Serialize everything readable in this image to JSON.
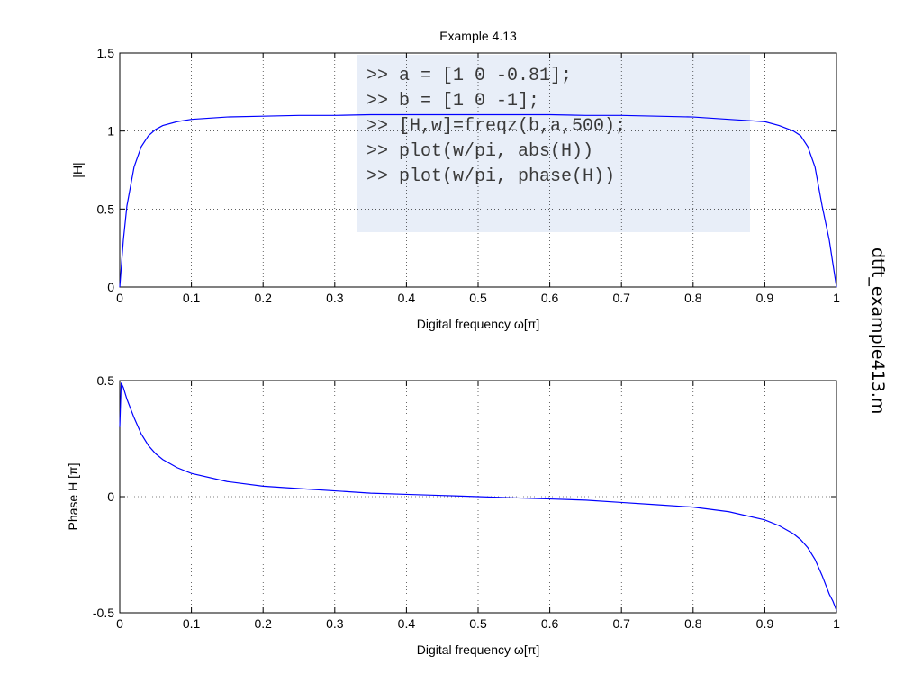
{
  "side_label": "dtft_example413.m",
  "code_box": {
    "lines": [
      ">> a = [1 0 -0.81];",
      ">> b = [1 0 -1];",
      ">> [H,w]=freqz(b,a,500);",
      ">> plot(w/pi, abs(H))",
      ">> plot(w/pi, phase(H))"
    ]
  },
  "colors": {
    "line": "#0000ff",
    "grid": "#000000",
    "code_box_bg": "#e8eef8"
  },
  "chart_data": [
    {
      "type": "line",
      "title": "Example 4.13",
      "xlabel": "Digital frequency ω[π]",
      "ylabel": "|H|",
      "xlim": [
        0,
        1
      ],
      "ylim": [
        0,
        1.5
      ],
      "xticks": [
        0,
        0.1,
        0.2,
        0.3,
        0.4,
        0.5,
        0.6,
        0.7,
        0.8,
        0.9,
        1
      ],
      "xtick_labels": [
        "0",
        "0.1",
        "0.2",
        "0.3",
        "0.4",
        "0.5",
        "0.6",
        "0.7",
        "0.8",
        "0.9",
        "1"
      ],
      "yticks": [
        0,
        0.5,
        1,
        1.5
      ],
      "ytick_labels": [
        "0",
        "0.5",
        "1",
        "1.5"
      ],
      "grid": true,
      "series": [
        {
          "x": [
            0,
            0.005,
            0.01,
            0.02,
            0.03,
            0.04,
            0.05,
            0.06,
            0.08,
            0.1,
            0.15,
            0.2,
            0.25,
            0.3,
            0.35,
            0.4,
            0.45,
            0.5,
            0.55,
            0.6,
            0.65,
            0.7,
            0.75,
            0.8,
            0.85,
            0.9,
            0.92,
            0.94,
            0.95,
            0.96,
            0.97,
            0.98,
            0.99,
            0.995,
            1
          ],
          "y": [
            0,
            0.3,
            0.52,
            0.77,
            0.9,
            0.97,
            1.01,
            1.035,
            1.06,
            1.075,
            1.09,
            1.095,
            1.1,
            1.1,
            1.105,
            1.105,
            1.105,
            1.105,
            1.105,
            1.105,
            1.1,
            1.1,
            1.095,
            1.09,
            1.075,
            1.06,
            1.035,
            1.0,
            0.97,
            0.9,
            0.77,
            0.52,
            0.3,
            0.15,
            0
          ]
        }
      ]
    },
    {
      "type": "line",
      "title": "",
      "xlabel": "Digital frequency ω[π]",
      "ylabel": "Phase H [π]",
      "xlim": [
        0,
        1
      ],
      "ylim": [
        -0.5,
        0.5
      ],
      "xticks": [
        0,
        0.1,
        0.2,
        0.3,
        0.4,
        0.5,
        0.6,
        0.7,
        0.8,
        0.9,
        1
      ],
      "xtick_labels": [
        "0",
        "0.1",
        "0.2",
        "0.3",
        "0.4",
        "0.5",
        "0.6",
        "0.7",
        "0.8",
        "0.9",
        "1"
      ],
      "yticks": [
        -0.5,
        0,
        0.5
      ],
      "ytick_labels": [
        "-0.5",
        "0",
        "0.5"
      ],
      "grid": true,
      "series": [
        {
          "x": [
            0,
            0.002,
            0.005,
            0.01,
            0.02,
            0.03,
            0.04,
            0.05,
            0.06,
            0.08,
            0.1,
            0.15,
            0.2,
            0.25,
            0.3,
            0.35,
            0.4,
            0.45,
            0.5,
            0.55,
            0.6,
            0.65,
            0.7,
            0.75,
            0.8,
            0.85,
            0.9,
            0.92,
            0.94,
            0.95,
            0.96,
            0.97,
            0.98,
            0.99,
            0.995,
            1
          ],
          "y": [
            0.3,
            0.49,
            0.47,
            0.42,
            0.34,
            0.27,
            0.22,
            0.185,
            0.16,
            0.125,
            0.1,
            0.065,
            0.045,
            0.035,
            0.025,
            0.015,
            0.01,
            0.005,
            0,
            -0.005,
            -0.01,
            -0.015,
            -0.025,
            -0.035,
            -0.045,
            -0.065,
            -0.1,
            -0.125,
            -0.16,
            -0.185,
            -0.22,
            -0.27,
            -0.34,
            -0.42,
            -0.45,
            -0.49
          ]
        }
      ]
    }
  ]
}
